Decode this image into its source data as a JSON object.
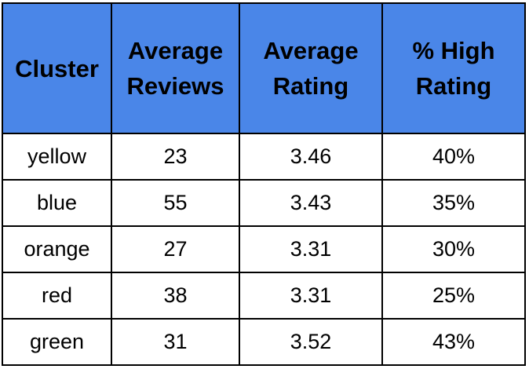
{
  "table": {
    "header_bg": "#4a86e8",
    "columns": [
      {
        "line1": "Cluster",
        "line2": ""
      },
      {
        "line1": "Average",
        "line2": "Reviews"
      },
      {
        "line1": "Average",
        "line2": "Rating"
      },
      {
        "line1": "% High",
        "line2": "Rating"
      }
    ],
    "rows": [
      [
        "yellow",
        "23",
        "3.46",
        "40%"
      ],
      [
        "blue",
        "55",
        "3.43",
        "35%"
      ],
      [
        "orange",
        "27",
        "3.31",
        "30%"
      ],
      [
        "red",
        "38",
        "3.31",
        "25%"
      ],
      [
        "green",
        "31",
        "3.52",
        "43%"
      ]
    ]
  }
}
